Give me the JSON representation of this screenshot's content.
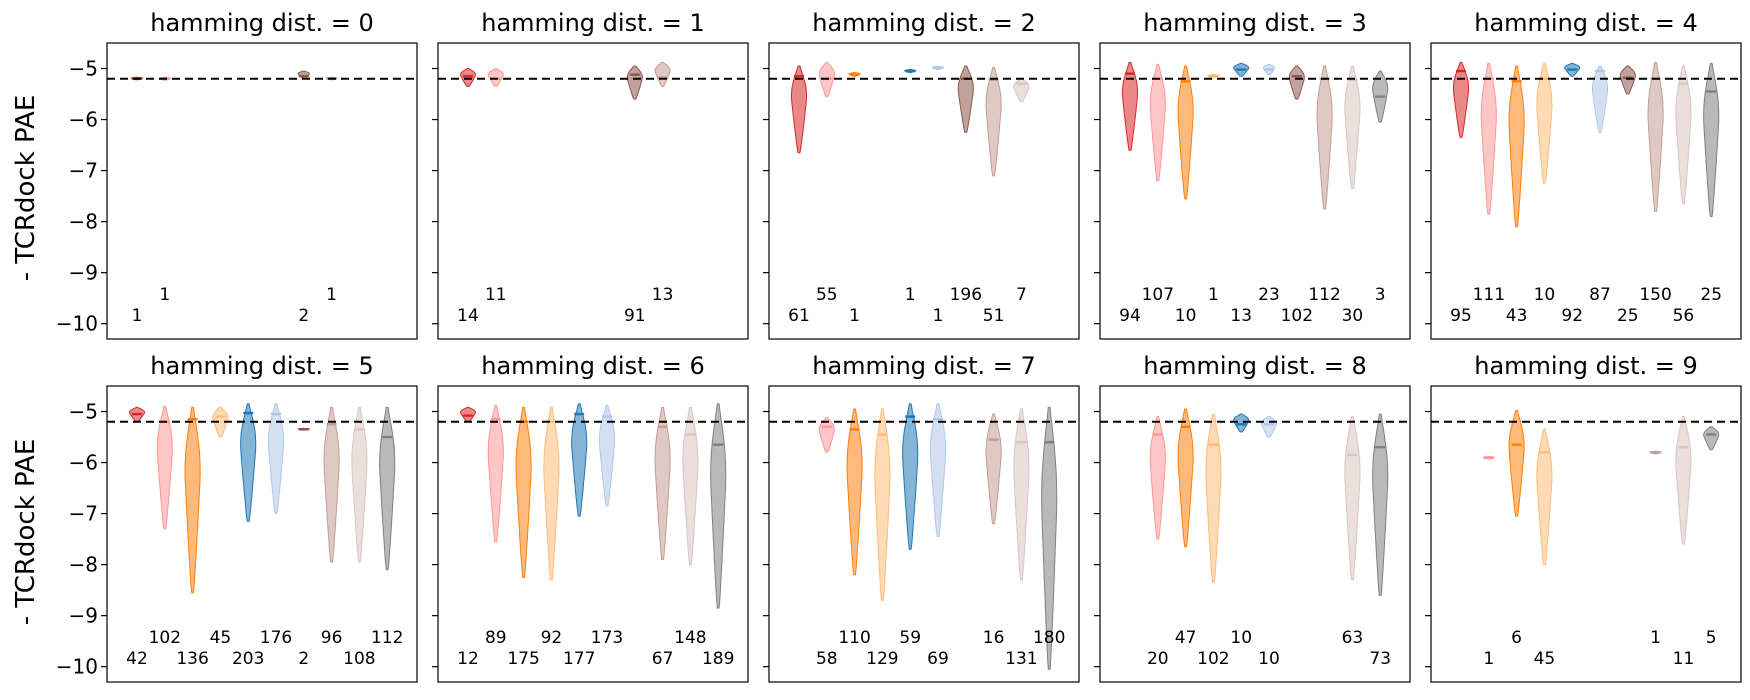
{
  "ylabel": "- TCRdock PAE",
  "ylim": [
    -10.3,
    -4.5
  ],
  "yticks": [
    -5,
    -6,
    -7,
    -8,
    -9,
    -10
  ],
  "ytick_labels": [
    "−5",
    "−6",
    "−7",
    "−8",
    "−9",
    "−10"
  ],
  "reference_line": -5.2,
  "colors": [
    "#d62728",
    "#ff9896",
    "#ff7f0e",
    "#ffbb78",
    "#1f77b4",
    "#aec7e8",
    "#8c564b",
    "#c49c94",
    "#d9c5c1",
    "#7f7f7f"
  ],
  "chart_data": [
    {
      "type": "violin",
      "title": "hamming dist. = 0",
      "violins": [
        {
          "group": 0,
          "min": -5.22,
          "max": -5.17,
          "median": -5.2,
          "count": "1"
        },
        {
          "group": 1,
          "min": -5.23,
          "max": -5.17,
          "median": -5.2,
          "count": "1"
        },
        {
          "group": 6,
          "min": -5.2,
          "max": -5.05,
          "median": -5.15,
          "count": "2"
        },
        {
          "group": 7,
          "min": -5.22,
          "max": -5.17,
          "median": -5.2,
          "count": "1"
        }
      ]
    },
    {
      "type": "violin",
      "title": "hamming dist. = 1",
      "violins": [
        {
          "group": 0,
          "min": -5.35,
          "max": -5.0,
          "median": -5.15,
          "count": "14"
        },
        {
          "group": 1,
          "min": -5.35,
          "max": -5.0,
          "median": -5.2,
          "count": "11"
        },
        {
          "group": 6,
          "min": -5.6,
          "max": -4.95,
          "median": -5.12,
          "count": "91"
        },
        {
          "group": 7,
          "min": -5.35,
          "max": -4.88,
          "median": -5.18,
          "count": "13"
        }
      ]
    },
    {
      "type": "violin",
      "title": "hamming dist. = 2",
      "violins": [
        {
          "group": 0,
          "min": -6.65,
          "max": -4.95,
          "median": -5.15,
          "count": "61"
        },
        {
          "group": 1,
          "min": -5.55,
          "max": -4.88,
          "median": -5.2,
          "count": "55"
        },
        {
          "group": 2,
          "min": -5.15,
          "max": -5.08,
          "median": -5.12,
          "count": "1"
        },
        {
          "group": 4,
          "min": -5.08,
          "max": -5.02,
          "median": -5.05,
          "count": "1"
        },
        {
          "group": 5,
          "min": -5.02,
          "max": -4.96,
          "median": -4.99,
          "count": "1"
        },
        {
          "group": 6,
          "min": -6.25,
          "max": -4.95,
          "median": -5.2,
          "count": "196"
        },
        {
          "group": 7,
          "min": -7.1,
          "max": -4.98,
          "median": -5.22,
          "count": "51"
        },
        {
          "group": 8,
          "min": -5.65,
          "max": -5.2,
          "median": -5.3,
          "count": "7"
        }
      ]
    },
    {
      "type": "violin",
      "title": "hamming dist. = 3",
      "violins": [
        {
          "group": 0,
          "min": -6.6,
          "max": -4.88,
          "median": -5.1,
          "count": "94"
        },
        {
          "group": 1,
          "min": -7.2,
          "max": -4.92,
          "median": -5.2,
          "count": "107"
        },
        {
          "group": 2,
          "min": -7.55,
          "max": -4.95,
          "median": -5.25,
          "count": "10"
        },
        {
          "group": 3,
          "min": -5.18,
          "max": -5.12,
          "median": -5.15,
          "count": "1"
        },
        {
          "group": 4,
          "min": -5.15,
          "max": -4.9,
          "median": -5.02,
          "count": "13"
        },
        {
          "group": 5,
          "min": -5.12,
          "max": -4.92,
          "median": -5.02,
          "count": "23"
        },
        {
          "group": 6,
          "min": -5.6,
          "max": -4.95,
          "median": -5.15,
          "count": "102"
        },
        {
          "group": 7,
          "min": -7.75,
          "max": -4.95,
          "median": -5.2,
          "count": "112"
        },
        {
          "group": 8,
          "min": -7.35,
          "max": -4.95,
          "median": -5.22,
          "count": "30"
        },
        {
          "group": 9,
          "min": -6.05,
          "max": -5.05,
          "median": -5.55,
          "count": "3"
        }
      ]
    },
    {
      "type": "violin",
      "title": "hamming dist. = 4",
      "violins": [
        {
          "group": 0,
          "min": -6.35,
          "max": -4.88,
          "median": -5.05,
          "count": "95"
        },
        {
          "group": 1,
          "min": -7.85,
          "max": -4.9,
          "median": -5.2,
          "count": "111"
        },
        {
          "group": 2,
          "min": -8.1,
          "max": -4.95,
          "median": -5.25,
          "count": "43"
        },
        {
          "group": 3,
          "min": -7.25,
          "max": -4.9,
          "median": -5.2,
          "count": "10"
        },
        {
          "group": 4,
          "min": -5.15,
          "max": -4.9,
          "median": -5.02,
          "count": "92"
        },
        {
          "group": 5,
          "min": -6.25,
          "max": -4.95,
          "median": -5.05,
          "count": "87"
        },
        {
          "group": 6,
          "min": -5.5,
          "max": -4.95,
          "median": -5.18,
          "count": "25"
        },
        {
          "group": 7,
          "min": -7.8,
          "max": -4.88,
          "median": -5.2,
          "count": "150"
        },
        {
          "group": 8,
          "min": -7.65,
          "max": -4.95,
          "median": -5.3,
          "count": "56"
        },
        {
          "group": 9,
          "min": -7.9,
          "max": -4.9,
          "median": -5.45,
          "count": "25"
        }
      ]
    },
    {
      "type": "violin",
      "title": "hamming dist. = 5",
      "violins": [
        {
          "group": 0,
          "min": -5.2,
          "max": -4.92,
          "median": -5.05,
          "count": "42"
        },
        {
          "group": 1,
          "min": -7.3,
          "max": -4.9,
          "median": -5.2,
          "count": "102"
        },
        {
          "group": 2,
          "min": -8.55,
          "max": -4.92,
          "median": -5.15,
          "count": "136"
        },
        {
          "group": 3,
          "min": -5.5,
          "max": -4.92,
          "median": -5.1,
          "count": "45"
        },
        {
          "group": 4,
          "min": -7.15,
          "max": -4.85,
          "median": -5.03,
          "count": "203"
        },
        {
          "group": 5,
          "min": -7.0,
          "max": -4.85,
          "median": -5.05,
          "count": "176"
        },
        {
          "group": 6,
          "min": -5.36,
          "max": -5.33,
          "median": -5.35,
          "count": "2"
        },
        {
          "group": 7,
          "min": -7.95,
          "max": -4.92,
          "median": -5.25,
          "count": "96"
        },
        {
          "group": 8,
          "min": -7.95,
          "max": -4.92,
          "median": -5.35,
          "count": "108"
        },
        {
          "group": 9,
          "min": -8.1,
          "max": -4.92,
          "median": -5.5,
          "count": "112"
        }
      ]
    },
    {
      "type": "violin",
      "title": "hamming dist. = 6",
      "violins": [
        {
          "group": 0,
          "min": -5.2,
          "max": -4.92,
          "median": -5.08,
          "count": "12"
        },
        {
          "group": 1,
          "min": -7.55,
          "max": -4.88,
          "median": -5.15,
          "count": "89"
        },
        {
          "group": 2,
          "min": -8.25,
          "max": -4.92,
          "median": -5.2,
          "count": "175"
        },
        {
          "group": 3,
          "min": -8.3,
          "max": -4.92,
          "median": -5.2,
          "count": "92"
        },
        {
          "group": 4,
          "min": -7.05,
          "max": -4.85,
          "median": -5.05,
          "count": "177"
        },
        {
          "group": 5,
          "min": -6.85,
          "max": -4.88,
          "median": -5.1,
          "count": "173"
        },
        {
          "group": 7,
          "min": -7.9,
          "max": -4.92,
          "median": -5.3,
          "count": "67"
        },
        {
          "group": 8,
          "min": -8.0,
          "max": -4.92,
          "median": -5.45,
          "count": "148"
        },
        {
          "group": 9,
          "min": -8.85,
          "max": -4.85,
          "median": -5.65,
          "count": "189"
        }
      ]
    },
    {
      "type": "violin",
      "title": "hamming dist. = 7",
      "violins": [
        {
          "group": 1,
          "min": -5.8,
          "max": -5.12,
          "median": -5.3,
          "count": "58"
        },
        {
          "group": 2,
          "min": -8.2,
          "max": -4.95,
          "median": -5.35,
          "count": "110"
        },
        {
          "group": 3,
          "min": -8.7,
          "max": -4.95,
          "median": -5.45,
          "count": "129"
        },
        {
          "group": 4,
          "min": -7.7,
          "max": -4.85,
          "median": -5.1,
          "count": "59"
        },
        {
          "group": 5,
          "min": -7.45,
          "max": -4.85,
          "median": -5.15,
          "count": "69"
        },
        {
          "group": 7,
          "min": -7.2,
          "max": -5.05,
          "median": -5.55,
          "count": "16"
        },
        {
          "group": 8,
          "min": -8.3,
          "max": -4.95,
          "median": -5.6,
          "count": "131"
        },
        {
          "group": 9,
          "min": -10.05,
          "max": -4.92,
          "median": -5.6,
          "count": "180"
        }
      ]
    },
    {
      "type": "violin",
      "title": "hamming dist. = 8",
      "violins": [
        {
          "group": 1,
          "min": -7.5,
          "max": -5.1,
          "median": -5.45,
          "count": "20"
        },
        {
          "group": 2,
          "min": -7.65,
          "max": -4.95,
          "median": -5.3,
          "count": "47"
        },
        {
          "group": 3,
          "min": -8.35,
          "max": -5.05,
          "median": -5.65,
          "count": "102"
        },
        {
          "group": 4,
          "min": -5.4,
          "max": -5.05,
          "median": -5.25,
          "count": "10"
        },
        {
          "group": 5,
          "min": -5.5,
          "max": -5.1,
          "median": -5.25,
          "count": "10"
        },
        {
          "group": 8,
          "min": -8.3,
          "max": -5.1,
          "median": -5.85,
          "count": "63"
        },
        {
          "group": 9,
          "min": -8.6,
          "max": -5.05,
          "median": -5.7,
          "count": "73"
        }
      ]
    },
    {
      "type": "violin",
      "title": "hamming dist. = 9",
      "violins": [
        {
          "group": 1,
          "min": -5.93,
          "max": -5.88,
          "median": -5.91,
          "count": "1"
        },
        {
          "group": 2,
          "min": -7.05,
          "max": -4.98,
          "median": -5.65,
          "count": "6"
        },
        {
          "group": 3,
          "min": -8.0,
          "max": -5.35,
          "median": -5.8,
          "count": "45"
        },
        {
          "group": 7,
          "min": -5.83,
          "max": -5.78,
          "median": -5.8,
          "count": "1"
        },
        {
          "group": 8,
          "min": -7.6,
          "max": -5.1,
          "median": -5.7,
          "count": "11"
        },
        {
          "group": 9,
          "min": -5.75,
          "max": -5.3,
          "median": -5.45,
          "count": "5"
        }
      ]
    }
  ]
}
